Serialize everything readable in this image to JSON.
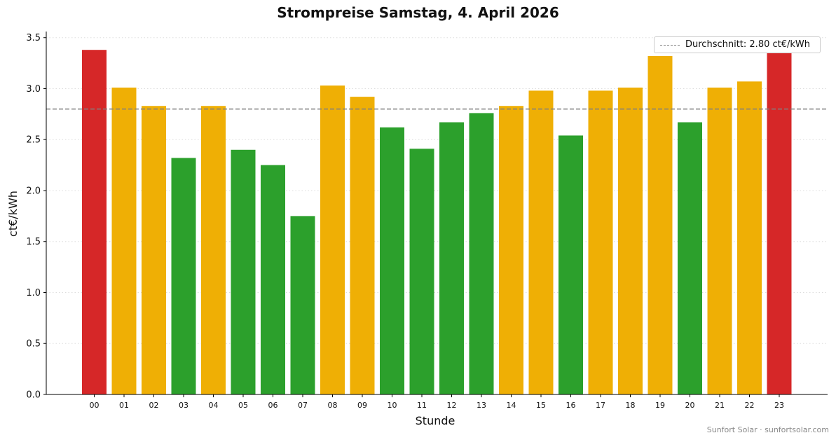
{
  "chart_data": {
    "type": "bar",
    "title": "Strompreise Samstag, 4. April 2026",
    "xlabel": "Stunde",
    "ylabel": "ct€/kWh",
    "ylim": [
      0,
      3.56
    ],
    "yticks": [
      0.0,
      0.5,
      1.0,
      1.5,
      2.0,
      2.5,
      3.0,
      3.5
    ],
    "ytick_labels": [
      "0.0",
      "0.5",
      "1.0",
      "1.5",
      "2.0",
      "2.5",
      "3.0",
      "3.5"
    ],
    "grid": true,
    "categories": [
      "00",
      "01",
      "02",
      "03",
      "04",
      "05",
      "06",
      "07",
      "08",
      "09",
      "10",
      "11",
      "12",
      "13",
      "14",
      "15",
      "16",
      "17",
      "18",
      "19",
      "20",
      "21",
      "22",
      "23"
    ],
    "values": [
      3.38,
      3.01,
      2.83,
      2.32,
      2.83,
      2.4,
      2.25,
      1.75,
      3.03,
      2.92,
      2.62,
      2.41,
      2.67,
      2.76,
      2.83,
      2.98,
      2.54,
      2.98,
      3.01,
      3.32,
      2.67,
      3.01,
      3.07,
      3.38
    ],
    "bar_colors": [
      "#d62728",
      "#efaf05",
      "#efaf05",
      "#2ca02c",
      "#efaf05",
      "#2ca02c",
      "#2ca02c",
      "#2ca02c",
      "#efaf05",
      "#efaf05",
      "#2ca02c",
      "#2ca02c",
      "#2ca02c",
      "#2ca02c",
      "#efaf05",
      "#efaf05",
      "#2ca02c",
      "#efaf05",
      "#efaf05",
      "#efaf05",
      "#2ca02c",
      "#efaf05",
      "#efaf05",
      "#d62728"
    ],
    "average": {
      "value": 2.8,
      "label": "Durchschnitt: 2.80 ct€/kWh",
      "color": "#808080"
    },
    "legend_position": "top-right"
  },
  "footer": "Sunfort Solar · sunfortsolar.com"
}
